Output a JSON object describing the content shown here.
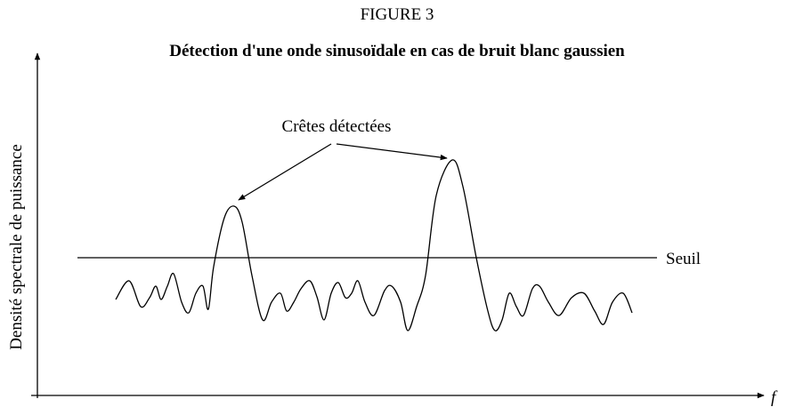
{
  "figure_label": "FIGURE 3",
  "title": "Détection d'une onde sinusoïdale en cas de bruit blanc gaussien",
  "y_axis_label": "Densité  spectrale de puissance",
  "x_axis_label": "f",
  "annotation": "Crêtes détectées",
  "threshold_label": "Seuil"
}
